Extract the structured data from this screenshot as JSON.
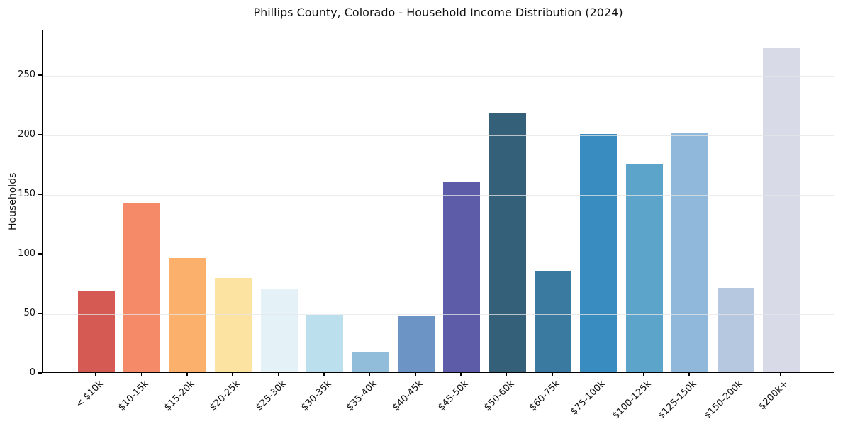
{
  "chart_data": {
    "type": "bar",
    "title": "Phillips County, Colorado - Household Income Distribution (2024)",
    "xlabel": "",
    "ylabel": "Households",
    "categories": [
      "< $10k",
      "$10-15k",
      "$15-20k",
      "$20-25k",
      "$25-30k",
      "$30-35k",
      "$35-40k",
      "$40-45k",
      "$45-50k",
      "$50-60k",
      "$60-75k",
      "$75-100k",
      "$100-125k",
      "$125-150k",
      "$150-200k",
      "$200k+"
    ],
    "values": [
      68,
      142,
      96,
      79,
      70,
      48,
      17,
      47,
      160,
      217,
      85,
      200,
      175,
      201,
      71,
      272
    ],
    "bar_colors": [
      "#d65a54",
      "#f58a68",
      "#fbb16c",
      "#fde3a2",
      "#e4f1f7",
      "#bcdfed",
      "#91bcda",
      "#6c94c4",
      "#5c5ca8",
      "#35607a",
      "#3a7aa0",
      "#398cc0",
      "#5da4ca",
      "#90b8da",
      "#b6c8e0",
      "#d8dae8"
    ],
    "ylim": [
      0,
      288
    ],
    "yticks": [
      0,
      50,
      100,
      150,
      200,
      250
    ],
    "grid": "horizontal",
    "gridline_color": "#e6e6e6",
    "legend": "none",
    "background": "#ffffff",
    "axis_color": "#000000"
  }
}
